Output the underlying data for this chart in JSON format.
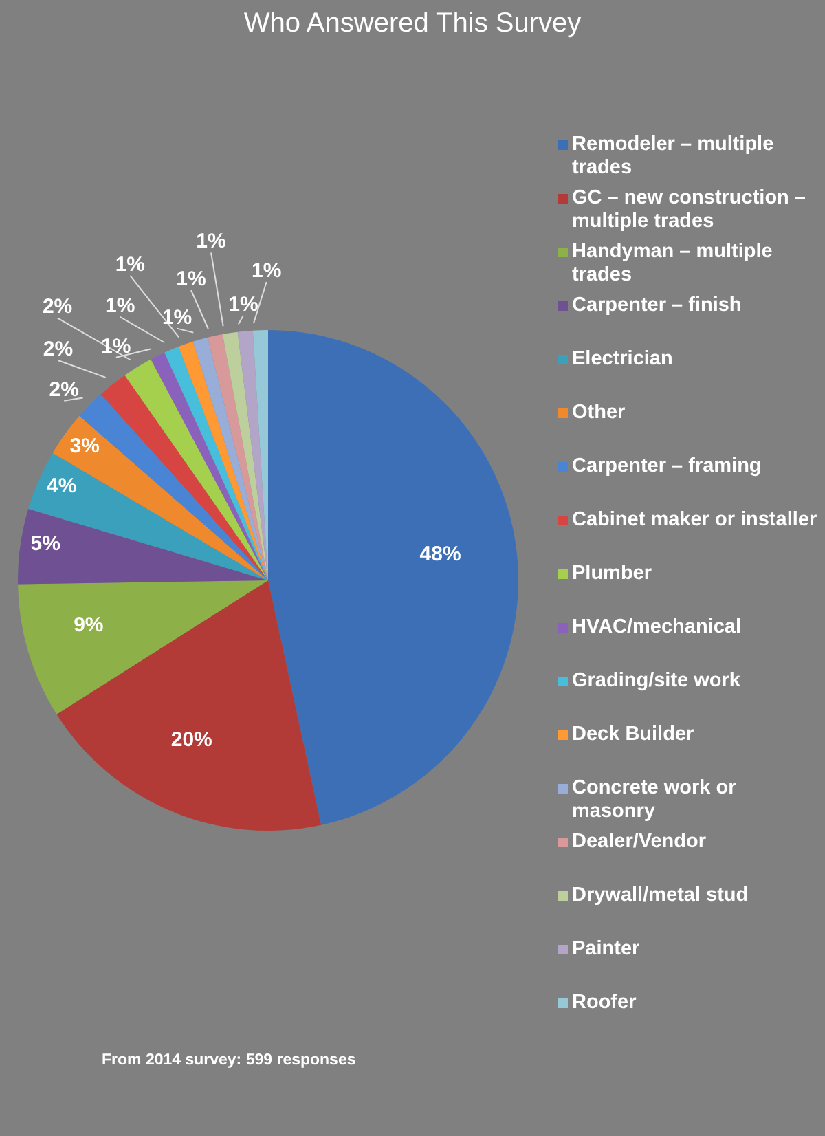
{
  "chart_data": {
    "type": "pie",
    "title": "Who Answered This Survey",
    "categories": [
      "Remodeler – multiple trades",
      "GC – new construction – multiple trades",
      "Handyman – multiple trades",
      "Carpenter – finish",
      "Electrician",
      "Other",
      "Carpenter – framing",
      "Cabinet maker or installer",
      "Plumber",
      "HVAC/mechanical",
      "Grading/site work",
      "Deck Builder",
      "Concrete work or masonry",
      "Dealer/Vendor",
      "Drywall/metal stud",
      "Painter",
      "Roofer"
    ],
    "values": [
      48,
      20,
      9,
      5,
      4,
      3,
      2,
      2,
      2,
      1,
      1,
      1,
      1,
      1,
      1,
      1,
      1
    ],
    "colors": [
      "#3d6fb6",
      "#b23b37",
      "#8db048",
      "#6f5092",
      "#3aa0bb",
      "#ee8a2d",
      "#4a84d4",
      "#d64541",
      "#a5d04d",
      "#8a62bc",
      "#47bfdc",
      "#ff9933",
      "#98aed8",
      "#d8999a",
      "#bccf9c",
      "#b2a5c8",
      "#96c8d8"
    ],
    "value_labels": [
      "48%",
      "20%",
      "9%",
      "5%",
      "4%",
      "3%",
      "2%",
      "2%",
      "2%",
      "1%",
      "1%",
      "1%",
      "1%",
      "1%",
      "1%",
      "1%",
      "1%"
    ],
    "legend": "right",
    "annotations": [
      "From 2014 survey: 599 responses"
    ]
  }
}
